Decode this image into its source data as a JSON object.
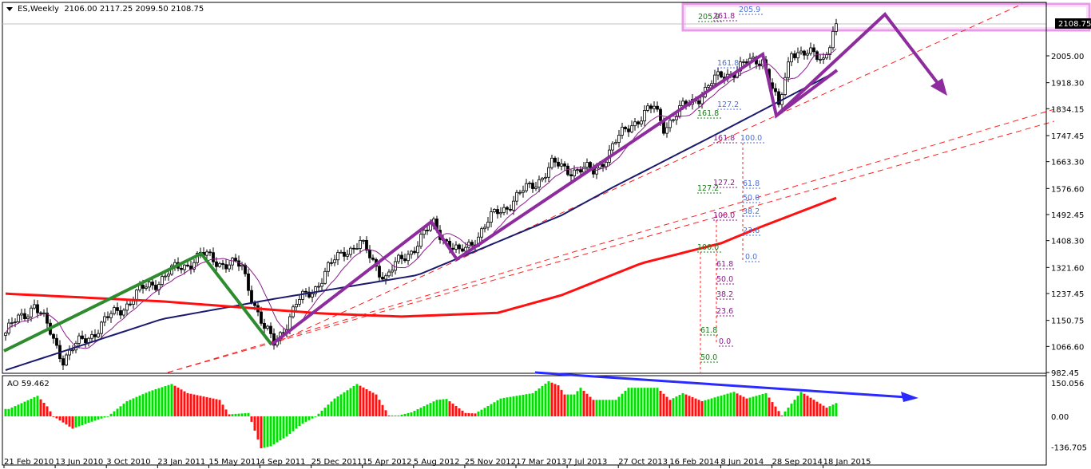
{
  "header": {
    "symbol": "ES,Weekly",
    "ohlc": "2106.00 2117.25 2099.50 2108.75"
  },
  "indicator": {
    "label": "AO 59.462"
  },
  "colors": {
    "ma_fast": "#8b1a8b",
    "ma_mid": "#1a1a6e",
    "ma_slow": "#ff1010",
    "trend_dashed": "#ff2020",
    "zigzag_green": "#2e8b2e",
    "zigzag_purple": "#8e2c9e",
    "ao_up": "#00e000",
    "ao_down": "#ff1010",
    "divergence_arrow": "#2a2aff",
    "highlight_box": "#e89ae8",
    "fib_green": "#1c7a1c",
    "fib_purple": "#8b1a8b",
    "fib_blue": "#4a6fdc"
  },
  "chart_data": [
    {
      "type": "candlestick",
      "title": "ES,Weekly",
      "last_price": "2108.75",
      "ylim": [
        982.45,
        2108.75
      ],
      "y_ticks": [
        "2005.00",
        "1918.30",
        "1834.15",
        "1747.45",
        "1663.30",
        "1576.60",
        "1492.45",
        "1408.30",
        "1321.60",
        "1237.45",
        "1150.75",
        "1066.60",
        "982.45"
      ],
      "x_ticks": [
        "21 Feb 2010",
        "13 Jun 2010",
        "3 Oct 2010",
        "23 Jan 2011",
        "15 May 2011",
        "4 Sep 2011",
        "25 Dec 2011",
        "15 Apr 2012",
        "5 Aug 2012",
        "25 Nov 2012",
        "17 Mar 2013",
        "7 Jul 2013",
        "27 Oct 2013",
        "16 Feb 2014",
        "8 Jun 2014",
        "28 Sep 2014",
        "18 Jan 2015"
      ],
      "close_path": [
        [
          "2010-02-21",
          1110
        ],
        [
          "2010-04-25",
          1206
        ],
        [
          "2010-06-27",
          1030
        ],
        [
          "2010-08-22",
          1100
        ],
        [
          "2010-10-31",
          1190
        ],
        [
          "2011-01-02",
          1265
        ],
        [
          "2011-04-24",
          1360
        ],
        [
          "2011-07-24",
          1320
        ],
        [
          "2011-09-11",
          1120
        ],
        [
          "2011-10-02",
          1075
        ],
        [
          "2011-11-20",
          1200
        ],
        [
          "2011-12-25",
          1250
        ],
        [
          "2012-03-04",
          1380
        ],
        [
          "2012-04-08",
          1395
        ],
        [
          "2012-06-03",
          1290
        ],
        [
          "2012-09-16",
          1460
        ],
        [
          "2012-11-11",
          1360
        ],
        [
          "2013-02-03",
          1500
        ],
        [
          "2013-04-14",
          1580
        ],
        [
          "2013-06-02",
          1650
        ],
        [
          "2013-09-01",
          1630
        ],
        [
          "2013-11-24",
          1790
        ],
        [
          "2014-01-12",
          1835
        ],
        [
          "2014-02-02",
          1780
        ],
        [
          "2014-06-08",
          1940
        ],
        [
          "2014-09-07",
          2000
        ],
        [
          "2014-10-12",
          1830
        ],
        [
          "2014-11-09",
          2030
        ],
        [
          "2014-12-14",
          2005
        ],
        [
          "2015-01-18",
          2000
        ],
        [
          "2015-02-15",
          2108.75
        ]
      ],
      "ma_mid": [
        [
          "2010-02-21",
          990
        ],
        [
          "2011-01-30",
          1155
        ],
        [
          "2011-10-02",
          1220
        ],
        [
          "2012-08-12",
          1297
        ],
        [
          "2013-06-23",
          1490
        ],
        [
          "2013-10-13",
          1580
        ],
        [
          "2014-06-08",
          1760
        ],
        [
          "2015-02-15",
          1954
        ]
      ],
      "ma_slow": [
        [
          "2010-02-21",
          1237
        ],
        [
          "2011-01-30",
          1212
        ],
        [
          "2012-01-15",
          1173
        ],
        [
          "2012-07-08",
          1163
        ],
        [
          "2013-02-03",
          1175
        ],
        [
          "2013-06-23",
          1232
        ],
        [
          "2013-12-15",
          1335
        ],
        [
          "2014-06-08",
          1400
        ],
        [
          "2014-08-31",
          1451
        ],
        [
          "2015-02-15",
          1546
        ]
      ],
      "fib_labels": {
        "green": [
          "205.9",
          "161.8",
          "127.2",
          "100.0",
          "61.8",
          "50.0"
        ],
        "purple": [
          "261.8",
          "161.8",
          "127.2",
          "100.0",
          "61.8",
          "50.0",
          "38.2",
          "23.6",
          "0.0"
        ],
        "blue": [
          "205.9",
          "161.8",
          "127.2",
          "100.0",
          "61.8",
          "50.0",
          "38.2",
          "23.6",
          "0.0"
        ]
      }
    },
    {
      "type": "bar",
      "title": "AO 59.462",
      "ylim": [
        -136.705,
        150.056
      ],
      "y_ticks": [
        "150.056",
        "0.00",
        "-136.705"
      ],
      "values_path": [
        [
          "2010-02-28",
          33
        ],
        [
          "2010-05-02",
          92
        ],
        [
          "2010-05-23",
          45
        ],
        [
          "2010-06-06",
          0
        ],
        [
          "2010-07-18",
          -55
        ],
        [
          "2010-08-22",
          -29
        ],
        [
          "2010-10-03",
          0
        ],
        [
          "2010-11-14",
          68
        ],
        [
          "2011-01-02",
          112
        ],
        [
          "2011-02-20",
          145
        ],
        [
          "2011-03-27",
          104
        ],
        [
          "2011-05-01",
          89
        ],
        [
          "2011-06-05",
          74
        ],
        [
          "2011-06-26",
          9
        ],
        [
          "2011-08-07",
          15
        ],
        [
          "2011-09-04",
          -143
        ],
        [
          "2011-09-25",
          -134
        ],
        [
          "2011-10-30",
          -90
        ],
        [
          "2011-12-04",
          -32
        ],
        [
          "2012-01-01",
          -2
        ],
        [
          "2012-02-12",
          80
        ],
        [
          "2012-04-01",
          145
        ],
        [
          "2012-05-13",
          98
        ],
        [
          "2012-06-10",
          4
        ],
        [
          "2012-07-01",
          4
        ],
        [
          "2012-07-29",
          18
        ],
        [
          "2012-09-23",
          74
        ],
        [
          "2012-10-14",
          78
        ],
        [
          "2012-11-25",
          15
        ],
        [
          "2012-12-16",
          13
        ],
        [
          "2013-02-10",
          80
        ],
        [
          "2013-04-21",
          104
        ],
        [
          "2013-05-26",
          157
        ],
        [
          "2013-06-16",
          139
        ],
        [
          "2013-06-30",
          98
        ],
        [
          "2013-07-21",
          98
        ],
        [
          "2013-08-04",
          128
        ],
        [
          "2013-09-01",
          74
        ],
        [
          "2013-10-20",
          74
        ],
        [
          "2013-11-17",
          128
        ],
        [
          "2014-01-19",
          128
        ],
        [
          "2014-02-16",
          74
        ],
        [
          "2014-03-16",
          104
        ],
        [
          "2014-04-27",
          68
        ],
        [
          "2014-07-06",
          110
        ],
        [
          "2014-08-03",
          80
        ],
        [
          "2014-09-14",
          104
        ],
        [
          "2014-10-19",
          4
        ],
        [
          "2014-11-30",
          110
        ],
        [
          "2015-01-25",
          39
        ],
        [
          "2015-02-15",
          59.462
        ]
      ]
    }
  ]
}
